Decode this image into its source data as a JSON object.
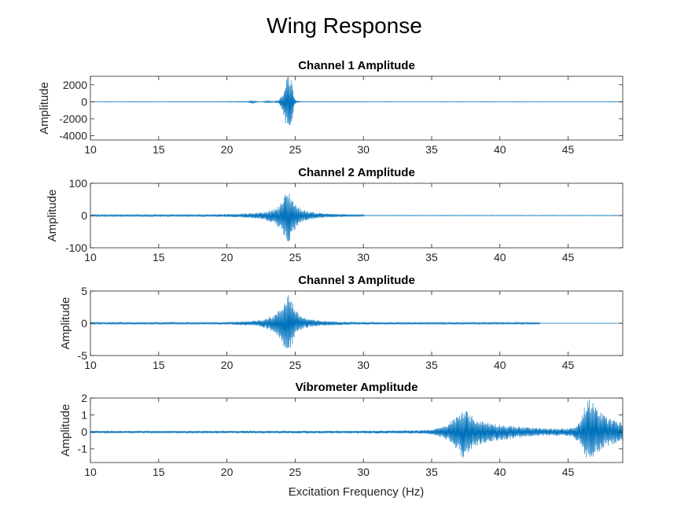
{
  "figure": {
    "title": "Wing Response",
    "xlabel": "Excitation Frequency (Hz)"
  },
  "chart_data": [
    {
      "type": "line",
      "title": "Channel 1 Amplitude",
      "xlabel": "",
      "ylabel": "Amplitude",
      "xlim": [
        10,
        49
      ],
      "ylim": [
        -4500,
        3000
      ],
      "xticks": [
        10,
        15,
        20,
        25,
        30,
        35,
        40,
        45
      ],
      "yticks": [
        -4000,
        -2000,
        0,
        2000
      ],
      "color": "#0072BD",
      "grid": false,
      "series": [
        {
          "x": [
            10,
            15,
            20,
            21.5,
            21.9,
            22.2,
            22.6,
            23.0,
            23.4,
            23.8,
            24.1,
            24.3,
            24.4,
            24.5,
            24.6,
            24.7,
            24.8,
            24.9,
            25.1,
            25.5,
            30,
            35,
            40,
            45,
            49
          ],
          "upper": [
            30,
            30,
            40,
            60,
            200,
            60,
            40,
            120,
            60,
            150,
            1000,
            2600,
            3000,
            3000,
            2900,
            2900,
            2000,
            600,
            100,
            40,
            30,
            30,
            30,
            30,
            30
          ],
          "lower": [
            -30,
            -30,
            -40,
            -60,
            -250,
            -60,
            -40,
            -150,
            -60,
            -180,
            -1200,
            -2800,
            -3700,
            -3800,
            -3700,
            -3400,
            -2300,
            -700,
            -100,
            -40,
            -30,
            -30,
            -30,
            -30,
            -30
          ]
        }
      ]
    },
    {
      "type": "line",
      "title": "Channel 2 Amplitude",
      "xlabel": "",
      "ylabel": "Amplitude",
      "xlim": [
        10,
        49
      ],
      "ylim": [
        -100,
        100
      ],
      "xticks": [
        10,
        15,
        20,
        25,
        30,
        35,
        40,
        45
      ],
      "yticks": [
        -100,
        0,
        100
      ],
      "color": "#0072BD",
      "grid": false,
      "series": [
        {
          "x": [
            10,
            12,
            15,
            18,
            19,
            20,
            21,
            22,
            22.5,
            23,
            23.5,
            23.8,
            24.1,
            24.3,
            24.5,
            24.7,
            24.9,
            25.2,
            25.6,
            26,
            26.5,
            27,
            28,
            29,
            30,
            30.1,
            35,
            40,
            45,
            49
          ],
          "upper": [
            3,
            3,
            3,
            3,
            4,
            5,
            6,
            8,
            10,
            14,
            22,
            32,
            50,
            70,
            78,
            65,
            45,
            28,
            18,
            13,
            10,
            8,
            5,
            4,
            3,
            1,
            1,
            1,
            1,
            1
          ],
          "lower": [
            -3,
            -3,
            -3,
            -3,
            -4,
            -5,
            -6,
            -9,
            -12,
            -18,
            -28,
            -42,
            -62,
            -78,
            -83,
            -72,
            -50,
            -30,
            -20,
            -14,
            -10,
            -8,
            -5,
            -4,
            -3,
            -1,
            -1,
            -1,
            -1,
            -1
          ]
        }
      ]
    },
    {
      "type": "line",
      "title": "Channel 3 Amplitude",
      "xlabel": "",
      "ylabel": "Amplitude",
      "xlim": [
        10,
        49
      ],
      "ylim": [
        -5,
        5
      ],
      "xticks": [
        10,
        15,
        20,
        25,
        30,
        35,
        40,
        45
      ],
      "yticks": [
        -5,
        0,
        5
      ],
      "color": "#0072BD",
      "grid": false,
      "series": [
        {
          "x": [
            10,
            12,
            15,
            18,
            20,
            21,
            22,
            22.5,
            23,
            23.5,
            23.8,
            24.1,
            24.3,
            24.5,
            24.7,
            24.9,
            25.2,
            25.6,
            26,
            26.5,
            27,
            28,
            30,
            35,
            40,
            42.9,
            43.0,
            45,
            49
          ],
          "upper": [
            0.15,
            0.15,
            0.15,
            0.15,
            0.2,
            0.3,
            0.4,
            0.6,
            0.9,
            1.4,
            2.0,
            3.0,
            4.2,
            4.9,
            4.2,
            2.8,
            1.6,
            1.0,
            0.7,
            0.5,
            0.4,
            0.3,
            0.2,
            0.15,
            0.15,
            0.15,
            0.03,
            0.03,
            0.03
          ],
          "lower": [
            -0.15,
            -0.15,
            -0.15,
            -0.15,
            -0.2,
            -0.3,
            -0.4,
            -0.6,
            -1.0,
            -1.5,
            -2.2,
            -3.2,
            -4.3,
            -4.8,
            -4.0,
            -2.6,
            -1.5,
            -0.9,
            -0.6,
            -0.5,
            -0.4,
            -0.3,
            -0.2,
            -0.15,
            -0.15,
            -0.15,
            -0.03,
            -0.03,
            -0.03
          ]
        }
      ]
    },
    {
      "type": "line",
      "title": "Vibrometer Amplitude",
      "xlabel": "Excitation Frequency (Hz)",
      "ylabel": "Amplitude",
      "xlim": [
        10,
        49
      ],
      "ylim": [
        -1.8,
        2
      ],
      "xticks": [
        10,
        15,
        20,
        25,
        30,
        35,
        40,
        45
      ],
      "yticks": [
        -1,
        0,
        1,
        2
      ],
      "color": "#0072BD",
      "grid": false,
      "series": [
        {
          "x": [
            10,
            12,
            15,
            20,
            25,
            30,
            34,
            35,
            36,
            36.5,
            37,
            37.3,
            37.6,
            38,
            38.5,
            39,
            40,
            41,
            42,
            43,
            44,
            45,
            45.5,
            46,
            46.3,
            46.6,
            47,
            47.5,
            48,
            49
          ],
          "upper": [
            0.07,
            0.07,
            0.06,
            0.07,
            0.07,
            0.08,
            0.1,
            0.15,
            0.35,
            0.7,
            1.1,
            1.5,
            1.2,
            0.9,
            0.7,
            0.6,
            0.45,
            0.35,
            0.28,
            0.22,
            0.2,
            0.22,
            0.35,
            0.8,
            1.9,
            2.0,
            1.5,
            1.1,
            0.8,
            0.6
          ],
          "lower": [
            -0.08,
            -0.08,
            -0.07,
            -0.08,
            -0.08,
            -0.09,
            -0.1,
            -0.15,
            -0.4,
            -0.8,
            -1.2,
            -1.6,
            -1.3,
            -1.0,
            -0.75,
            -0.65,
            -0.5,
            -0.4,
            -0.3,
            -0.25,
            -0.22,
            -0.25,
            -0.4,
            -0.9,
            -1.6,
            -1.7,
            -1.4,
            -1.0,
            -0.8,
            -0.6
          ]
        }
      ]
    }
  ]
}
